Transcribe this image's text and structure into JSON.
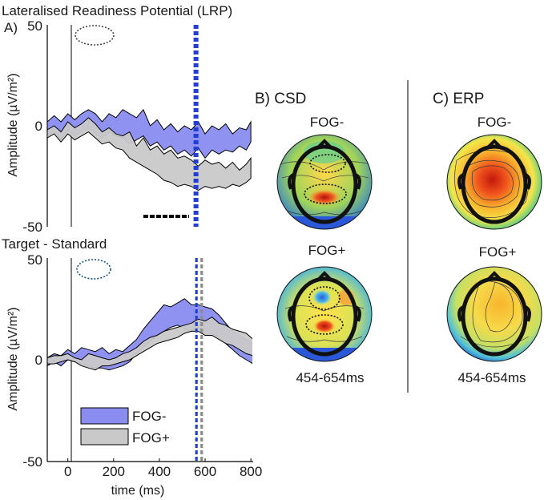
{
  "chart_data": [
    {
      "id": "A1",
      "type": "area",
      "panel_label": "A)",
      "title": "Lateralised Readiness Potential (LRP)",
      "ylabel": "Amplitude (µV/m²)",
      "xlim": [
        -90,
        810
      ],
      "ylim": [
        -50,
        50
      ],
      "yticks": [
        50,
        0,
        -50
      ],
      "stim_line_x": 0,
      "vlines": [
        {
          "x": 555,
          "color": "#1f3fd6"
        },
        {
          "x": 565,
          "color": "#1f3fd6"
        }
      ],
      "significance_bars": [
        [
          330,
          530
        ]
      ],
      "series": [
        {
          "name": "FOG-",
          "color": "#8a8cf0",
          "x": [
            -90,
            -60,
            -30,
            0,
            30,
            60,
            90,
            120,
            150,
            180,
            210,
            240,
            270,
            300,
            330,
            360,
            390,
            420,
            450,
            480,
            510,
            540,
            570,
            600,
            630,
            660,
            690,
            720,
            750,
            780,
            800
          ],
          "upper": [
            2,
            5,
            2,
            6,
            3,
            6,
            8,
            6,
            2,
            6,
            4,
            8,
            6,
            4,
            8,
            0,
            3,
            -2,
            1,
            -3,
            0,
            -2,
            2,
            -4,
            0,
            -2,
            1,
            -4,
            -1,
            -2,
            2
          ],
          "lower": [
            -5,
            -3,
            -7,
            -2,
            -5,
            -3,
            -1,
            -4,
            -6,
            -3,
            -5,
            -6,
            -9,
            -7,
            -5,
            -10,
            -8,
            -12,
            -10,
            -14,
            -12,
            -15,
            -11,
            -16,
            -12,
            -14,
            -12,
            -13,
            -10,
            -12,
            -8
          ]
        },
        {
          "name": "FOG+",
          "color": "#c9c9c9",
          "x": [
            -90,
            -60,
            -30,
            0,
            30,
            60,
            90,
            120,
            150,
            180,
            210,
            240,
            270,
            300,
            330,
            360,
            390,
            420,
            450,
            480,
            510,
            540,
            570,
            600,
            630,
            660,
            690,
            720,
            750,
            780,
            800
          ],
          "upper": [
            -2,
            0,
            -3,
            2,
            -1,
            1,
            4,
            1,
            -3,
            -1,
            -4,
            -5,
            -3,
            -10,
            -6,
            -12,
            -10,
            -14,
            -12,
            -16,
            -15,
            -17,
            -20,
            -17,
            -19,
            -18,
            -21,
            -18,
            -22,
            -19,
            -16
          ],
          "lower": [
            -6,
            -4,
            -8,
            -4,
            -7,
            -5,
            -3,
            -6,
            -9,
            -8,
            -11,
            -12,
            -16,
            -18,
            -20,
            -22,
            -24,
            -27,
            -28,
            -30,
            -29,
            -30,
            -32,
            -30,
            -31,
            -30,
            -31,
            -29,
            -30,
            -28,
            -26
          ]
        }
      ]
    },
    {
      "id": "A2",
      "type": "area",
      "title": "Target - Standard",
      "ylabel": "Amplitude (µV/m²)",
      "xlabel": "time (ms)",
      "xlim": [
        -90,
        810
      ],
      "ylim": [
        -50,
        50
      ],
      "yticks": [
        50,
        0,
        -50
      ],
      "xticks": [
        0,
        200,
        400,
        600,
        800
      ],
      "stim_line_x": 0,
      "vlines": [
        {
          "x": 562,
          "color": "#1f3fd6"
        },
        {
          "x": 585,
          "color": "#8c8c8c"
        }
      ],
      "legend": [
        {
          "label": "FOG-",
          "color": "#8a8cf0"
        },
        {
          "label": "FOG+",
          "color": "#c9c9c9"
        }
      ],
      "series": [
        {
          "name": "FOG-",
          "color": "#8a8cf0",
          "x": [
            -90,
            -60,
            -30,
            0,
            30,
            60,
            90,
            120,
            150,
            180,
            210,
            240,
            270,
            300,
            330,
            360,
            390,
            420,
            450,
            480,
            510,
            540,
            570,
            600,
            630,
            660,
            690,
            720,
            750,
            780,
            810
          ],
          "upper": [
            1,
            3,
            2,
            5,
            3,
            6,
            5,
            4,
            6,
            3,
            5,
            4,
            7,
            10,
            15,
            19,
            23,
            27,
            26,
            28,
            30,
            27,
            27,
            26,
            25,
            22,
            18,
            14,
            12,
            10,
            8
          ],
          "lower": [
            -3,
            -1,
            -3,
            0,
            -1,
            -2,
            -3,
            -4,
            -4,
            -5,
            -4,
            -3,
            -1,
            3,
            6,
            9,
            12,
            14,
            16,
            17,
            15,
            14,
            16,
            12,
            13,
            11,
            8,
            5,
            2,
            0,
            -2
          ]
        },
        {
          "name": "FOG+",
          "color": "#c9c9c9",
          "x": [
            -90,
            -60,
            -30,
            0,
            30,
            60,
            90,
            120,
            150,
            180,
            210,
            240,
            270,
            300,
            330,
            360,
            390,
            420,
            450,
            480,
            510,
            540,
            570,
            600,
            630,
            660,
            690,
            720,
            750,
            780,
            810
          ],
          "upper": [
            1,
            2,
            2,
            3,
            1,
            0,
            3,
            2,
            1,
            0,
            1,
            3,
            4,
            6,
            9,
            11,
            12,
            14,
            15,
            16,
            17,
            18,
            20,
            19,
            21,
            18,
            17,
            15,
            14,
            13,
            10
          ],
          "lower": [
            -2,
            -2,
            -1,
            0,
            -1,
            -3,
            -4,
            -5,
            -3,
            -3,
            -2,
            -1,
            0,
            2,
            4,
            6,
            8,
            9,
            10,
            11,
            13,
            14,
            14,
            12,
            12,
            10,
            8,
            7,
            5,
            3,
            2
          ]
        }
      ]
    }
  ],
  "csd": {
    "title": "B) CSD",
    "maps": [
      {
        "label": "FOG-",
        "kind": "csd-neg"
      },
      {
        "label": "FOG+",
        "kind": "csd-pos"
      }
    ],
    "time_window": "454-654ms"
  },
  "erp": {
    "title": "C) ERP",
    "maps": [
      {
        "label": "FOG-",
        "kind": "erp-neg"
      },
      {
        "label": "FOG+",
        "kind": "erp-pos"
      }
    ],
    "time_window": "454-654ms"
  },
  "colors": {
    "axis": "#000000",
    "sig_bar": "#000000",
    "roi_top": "#444444",
    "roi_bottom": "#14507a"
  }
}
